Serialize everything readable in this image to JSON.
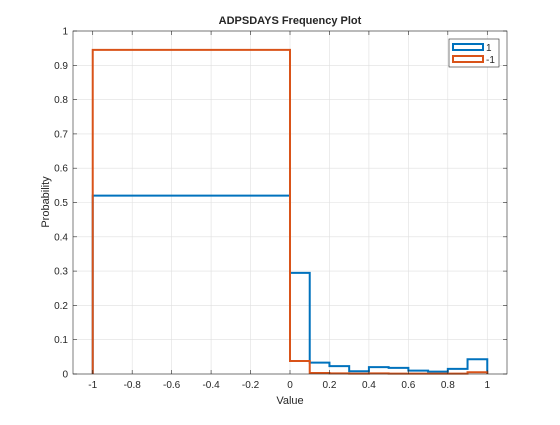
{
  "chart_data": {
    "type": "histogram",
    "title": "ADPSDAYS Frequency Plot",
    "xlabel": "Value",
    "ylabel": "Probability",
    "xlim": [
      -1.1,
      1.1
    ],
    "ylim": [
      0,
      1
    ],
    "grid": true,
    "legend_position": "top-right",
    "x_ticks": [
      "-1",
      "-0.8",
      "-0.6",
      "-0.4",
      "-0.2",
      "0",
      "0.2",
      "0.4",
      "0.6",
      "0.8",
      "1"
    ],
    "y_ticks": [
      "0",
      "0.1",
      "0.2",
      "0.3",
      "0.4",
      "0.5",
      "0.6",
      "0.7",
      "0.8",
      "0.9",
      "1"
    ],
    "series": [
      {
        "name": "1",
        "color": "#0072BD",
        "bin_edges": [
          -1,
          0,
          0.1,
          0.2,
          0.3,
          0.4,
          0.5,
          0.6,
          0.7,
          0.8,
          0.9,
          1
        ],
        "values": [
          0.52,
          0.295,
          0.033,
          0.023,
          0.008,
          0.02,
          0.018,
          0.01,
          0.007,
          0.015,
          0.043
        ]
      },
      {
        "name": "-1",
        "color": "#D95319",
        "bin_edges": [
          -1,
          0,
          0.1,
          0.2,
          0.3,
          0.4,
          0.5,
          0.6,
          0.7,
          0.8,
          0.9,
          1
        ],
        "values": [
          0.945,
          0.038,
          0.003,
          0.002,
          0.001,
          0.002,
          0.001,
          0.001,
          0.001,
          0.001,
          0.005
        ]
      }
    ]
  }
}
